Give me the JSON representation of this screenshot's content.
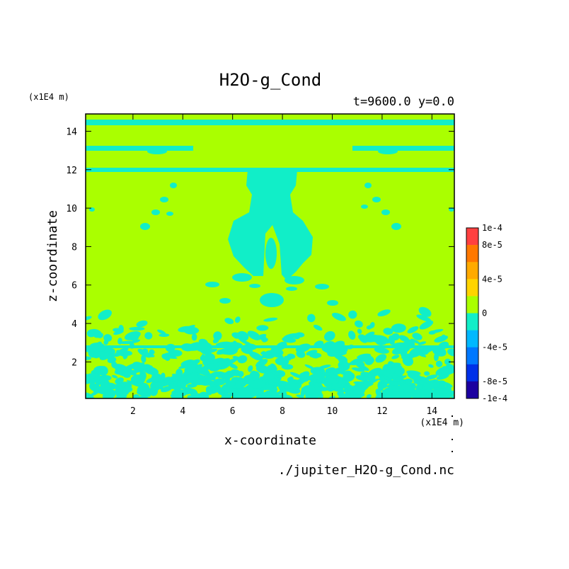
{
  "chart_data": {
    "type": "heatmap",
    "title": "H2O-g_Cond",
    "subtitle": "t=9600.0 y=0.0",
    "xlabel": "x-coordinate",
    "ylabel": "z-coordinate",
    "x_unit": "(x1E4 m)",
    "y_unit": "(x1E4 m)",
    "xlim": [
      0.1,
      14.9
    ],
    "ylim": [
      0.1,
      14.9
    ],
    "x_ticks": [
      "2",
      "4",
      "6",
      "8",
      "10",
      "12",
      "14"
    ],
    "y_ticks": [
      "2",
      "4",
      "6",
      "8",
      "10",
      "12",
      "14"
    ],
    "source_file": "./jupiter_H2O-g_Cond.nc",
    "colorbar": {
      "labels": [
        "1e-4",
        "8e-5",
        "4e-5",
        "0",
        "-4e-5",
        "-8e-5",
        "-1e-4"
      ],
      "levels": [
        {
          "lo": 8e-05,
          "hi": 0.0001,
          "color": "#ff4040"
        },
        {
          "lo": 6e-05,
          "hi": 8e-05,
          "color": "#ff7800"
        },
        {
          "lo": 4e-05,
          "hi": 6e-05,
          "color": "#ffaa00"
        },
        {
          "lo": 2e-05,
          "hi": 4e-05,
          "color": "#ffd400"
        },
        {
          "lo": 0,
          "hi": 2e-05,
          "color": "#aaff00"
        },
        {
          "lo": -2e-05,
          "hi": 0,
          "color": "#11eec8"
        },
        {
          "lo": -4e-05,
          "hi": -2e-05,
          "color": "#00b8ff"
        },
        {
          "lo": -6e-05,
          "hi": -4e-05,
          "color": "#0078ff"
        },
        {
          "lo": -8e-05,
          "hi": -6e-05,
          "color": "#0030e8"
        },
        {
          "lo": -0.0001,
          "hi": -8e-05,
          "color": "#1c00a0"
        }
      ]
    },
    "background_value_color": "#aaff00",
    "negative_value_color": "#11eec8",
    "grid": false,
    "legend": "right"
  }
}
